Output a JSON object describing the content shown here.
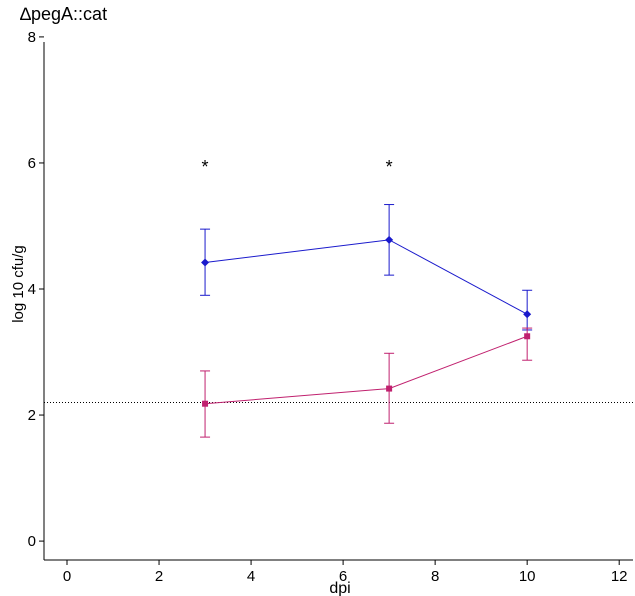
{
  "chart_data": {
    "type": "line",
    "title": "∆pegA::cat",
    "xlabel": "dpi",
    "ylabel": "log 10 cfu/g",
    "xlim": [
      -0.5,
      12.3
    ],
    "ylim": [
      -0.3,
      8.3
    ],
    "x_ticks": [
      0,
      2,
      4,
      6,
      8,
      10,
      12
    ],
    "y_ticks": [
      0,
      2,
      4,
      6,
      8
    ],
    "grid": false,
    "legend": "none",
    "detection_limit": 2.2,
    "series": [
      {
        "color": "#1a1acc",
        "marker": "diamond",
        "x": [
          3,
          7,
          10
        ],
        "y": [
          4.42,
          4.78,
          3.6
        ],
        "err_low": [
          3.9,
          4.22,
          3.35
        ],
        "err_high": [
          4.95,
          5.34,
          3.98
        ]
      },
      {
        "color": "#c0206e",
        "marker": "square",
        "x": [
          3,
          7,
          10
        ],
        "y": [
          2.18,
          2.42,
          3.25
        ],
        "err_low": [
          1.65,
          1.87,
          2.87
        ],
        "err_high": [
          2.7,
          2.98,
          3.38
        ]
      }
    ],
    "annotations": [
      {
        "text": "*",
        "x": 3,
        "y": 6.0
      },
      {
        "text": "*",
        "x": 7,
        "y": 6.0
      }
    ]
  }
}
